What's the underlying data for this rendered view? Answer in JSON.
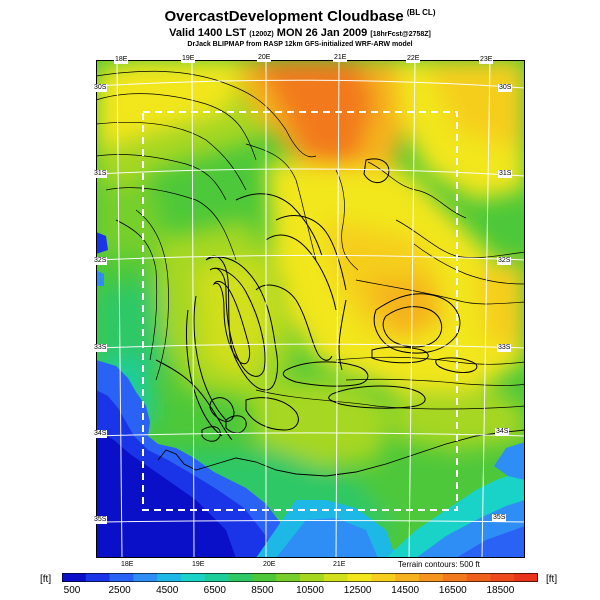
{
  "header": {
    "title": "OvercastDevelopment Cloudbase",
    "title_suffix": "(BL CL)",
    "valid": "Valid 1400 LST",
    "valid_code": "(1200Z)",
    "valid_date": "MON 26 Jan 2009",
    "forecast": "[18hrFcst@2758Z]",
    "credit": "DrJack BLIPMAP from RASP 12km GFS-initialized WRF-ARW model"
  },
  "map": {
    "lon_labels": [
      "18E",
      "19E",
      "20E",
      "21E",
      "22E",
      "23E"
    ],
    "lat_labels": [
      "30S",
      "31S",
      "32S",
      "33S",
      "34S",
      "35S"
    ],
    "terrain_note": "Terrain contours: 500 ft"
  },
  "colorbar": {
    "unit": "[ft]",
    "tick_labels": [
      "500",
      "2500",
      "4500",
      "6500",
      "8500",
      "10500",
      "12500",
      "14500",
      "16500",
      "18500"
    ],
    "colors": [
      "#0a10c8",
      "#1a35e8",
      "#2a62f5",
      "#2f8ef5",
      "#1eb8e6",
      "#19d2c8",
      "#1ccd9a",
      "#2ec866",
      "#4dc83a",
      "#76cf2a",
      "#a6d720",
      "#d1df1c",
      "#f2e61c",
      "#f5ce1e",
      "#f5b21e",
      "#f5951e",
      "#f27a1c",
      "#ef611b",
      "#ec4a1a",
      "#e8341a"
    ]
  }
}
